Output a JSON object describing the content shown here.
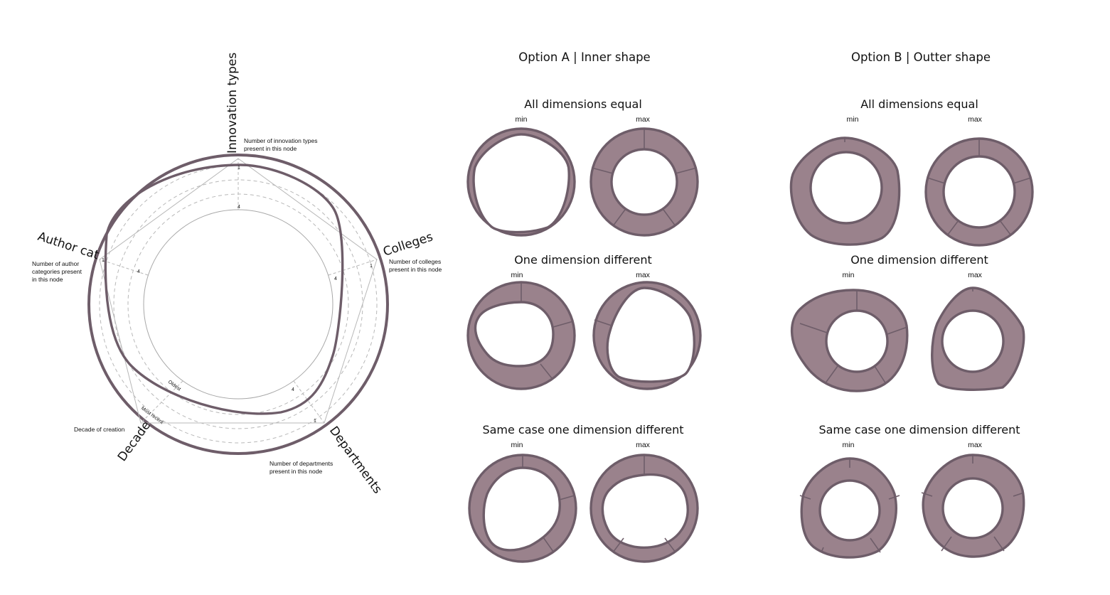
{
  "colors": {
    "ring_fill": "#9a828c",
    "ring_stroke": "#6e5d69",
    "guide": "#b8b8b8"
  },
  "radar": {
    "axes": [
      {
        "name": "innovation",
        "label": "Innovation types",
        "note_lines": [
          "Number of innovation types",
          "present in this node"
        ]
      },
      {
        "name": "colleges",
        "label": "Colleges",
        "note_lines": [
          "Number of colleges",
          "present in this node"
        ]
      },
      {
        "name": "departments",
        "label": "Departments",
        "note_lines": [
          "Number of departments",
          "present in this node"
        ]
      },
      {
        "name": "decade",
        "label": "Decade",
        "note_lines": [
          "Decade of creation"
        ]
      },
      {
        "name": "author",
        "label": "Author cat",
        "note_lines": [
          "Number of author",
          "categories present",
          "in this node"
        ]
      }
    ],
    "ticks": {
      "innovation": [
        "1",
        "4"
      ],
      "colleges": [
        "1",
        "4"
      ],
      "departments": [
        "1",
        "4"
      ],
      "author": [
        "1",
        "4"
      ]
    },
    "decade_labels": {
      "recent": "Most recent",
      "oldest": "Oldest"
    }
  },
  "panels": {
    "option_a": {
      "title": "Option A | Inner shape",
      "rows": [
        {
          "title": "All dimensions equal",
          "min_label": "min",
          "max_label": "max"
        },
        {
          "title": "One dimension different",
          "min_label": "min",
          "max_label": "max"
        },
        {
          "title": "Same case one dimension different",
          "min_label": "min",
          "max_label": "max"
        }
      ]
    },
    "option_b": {
      "title": "Option B | Outter shape",
      "rows": [
        {
          "title": "All dimensions equal",
          "min_label": "min",
          "max_label": "max"
        },
        {
          "title": "One dimension different",
          "min_label": "min",
          "max_label": "max"
        },
        {
          "title": "Same case one dimension different",
          "min_label": "min",
          "max_label": "max"
        }
      ]
    }
  }
}
